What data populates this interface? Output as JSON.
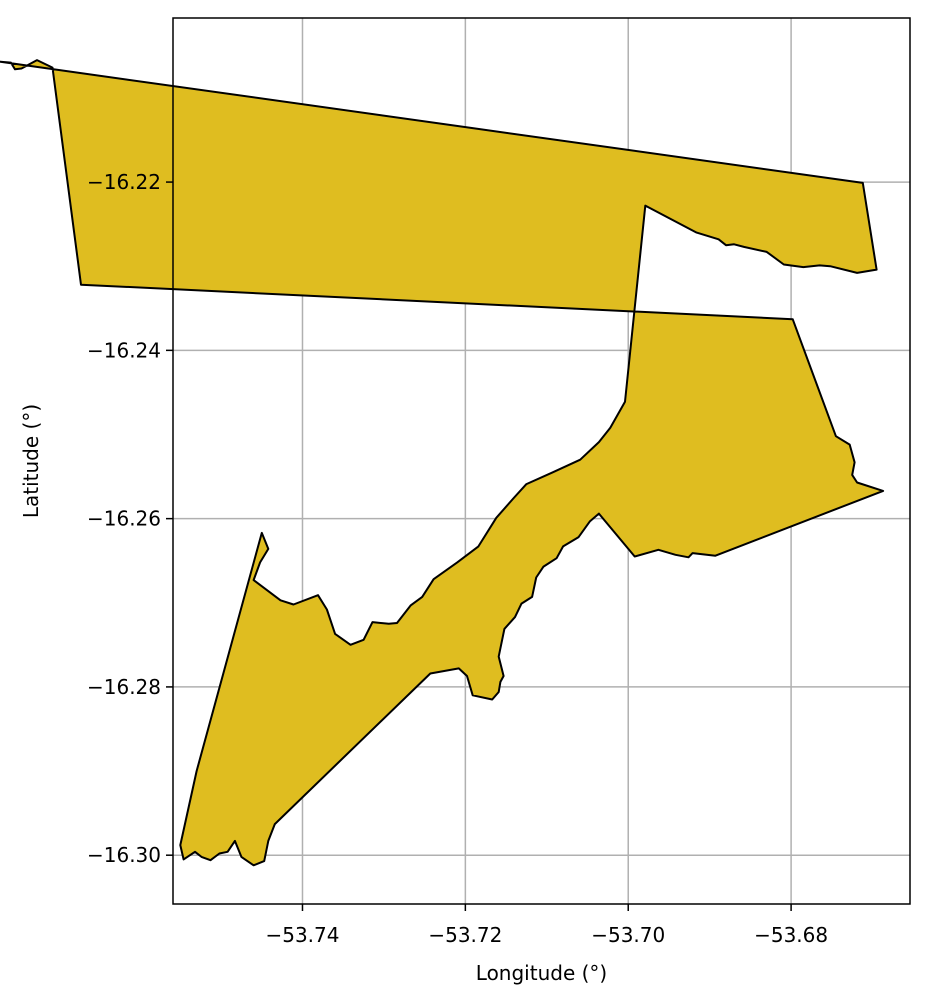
{
  "chart_data": {
    "type": "map",
    "xlabel": "Longitude (°)",
    "ylabel": "Latitude (°)",
    "xlim": [
      -53.7559,
      -53.6654
    ],
    "ylim": [
      -16.3058,
      -16.2005
    ],
    "x_ticks": [
      -53.74,
      -53.72,
      -53.7,
      -53.68
    ],
    "x_tick_labels": [
      "−53.74",
      "−53.72",
      "−53.70",
      "−53.68"
    ],
    "y_ticks": [
      -16.22,
      -16.24,
      -16.26,
      -16.28,
      -16.3
    ],
    "y_tick_labels": [
      "−16.22",
      "−16.24",
      "−16.26",
      "−16.28",
      "−16.30"
    ],
    "grid": true,
    "fill_color": "#dfbd20",
    "edge_color": "#000000",
    "polygon": [
      [
        -53.7771,
        -16.2057
      ],
      [
        -53.7758,
        -16.2058
      ],
      [
        -53.7753,
        -16.2066
      ],
      [
        -53.7745,
        -16.2065
      ],
      [
        -53.7726,
        -16.2055
      ],
      [
        -53.7711,
        -16.2062
      ],
      [
        -53.7707,
        -16.2064
      ],
      [
        -53.7672,
        -16.2322
      ],
      [
        -53.6798,
        -16.2363
      ],
      [
        -53.6745,
        -16.2502
      ],
      [
        -53.6728,
        -16.2512
      ],
      [
        -53.6722,
        -16.2533
      ],
      [
        -53.6725,
        -16.2548
      ],
      [
        -53.6719,
        -16.2557
      ],
      [
        -53.6687,
        -16.2567
      ],
      [
        -53.6893,
        -16.2644
      ],
      [
        -53.6921,
        -16.2641
      ],
      [
        -53.6926,
        -16.2646
      ],
      [
        -53.6942,
        -16.2643
      ],
      [
        -53.6963,
        -16.2637
      ],
      [
        -53.6992,
        -16.2645
      ],
      [
        -53.7036,
        -16.2594
      ],
      [
        -53.7047,
        -16.2603
      ],
      [
        -53.7061,
        -16.2622
      ],
      [
        -53.708,
        -16.2633
      ],
      [
        -53.7088,
        -16.2647
      ],
      [
        -53.7104,
        -16.2657
      ],
      [
        -53.7113,
        -16.267
      ],
      [
        -53.7118,
        -16.2693
      ],
      [
        -53.7131,
        -16.2701
      ],
      [
        -53.7139,
        -16.2717
      ],
      [
        -53.7152,
        -16.2731
      ],
      [
        -53.7159,
        -16.2764
      ],
      [
        -53.7153,
        -16.2787
      ],
      [
        -53.7157,
        -16.2794
      ],
      [
        -53.7159,
        -16.2806
      ],
      [
        -53.7167,
        -16.2815
      ],
      [
        -53.7191,
        -16.281
      ],
      [
        -53.7198,
        -16.2787
      ],
      [
        -53.7208,
        -16.2778
      ],
      [
        -53.7243,
        -16.2784
      ],
      [
        -53.7434,
        -16.2963
      ],
      [
        -53.7442,
        -16.2983
      ],
      [
        -53.7447,
        -16.3007
      ],
      [
        -53.746,
        -16.3012
      ],
      [
        -53.7475,
        -16.3002
      ],
      [
        -53.7483,
        -16.2983
      ],
      [
        -53.7492,
        -16.2996
      ],
      [
        -53.7502,
        -16.2998
      ],
      [
        -53.7513,
        -16.3006
      ],
      [
        -53.7524,
        -16.3002
      ],
      [
        -53.7532,
        -16.2996
      ],
      [
        -53.7546,
        -16.3005
      ],
      [
        -53.755,
        -16.2988
      ],
      [
        -53.753,
        -16.29
      ],
      [
        -53.745,
        -16.2617
      ],
      [
        -53.7442,
        -16.2636
      ],
      [
        -53.7452,
        -16.2652
      ],
      [
        -53.746,
        -16.2673
      ],
      [
        -53.7427,
        -16.2697
      ],
      [
        -53.7411,
        -16.2702
      ],
      [
        -53.7381,
        -16.2691
      ],
      [
        -53.737,
        -16.2708
      ],
      [
        -53.736,
        -16.2737
      ],
      [
        -53.7341,
        -16.275
      ],
      [
        -53.7325,
        -16.2744
      ],
      [
        -53.7314,
        -16.2723
      ],
      [
        -53.7294,
        -16.2725
      ],
      [
        -53.7284,
        -16.2724
      ],
      [
        -53.7267,
        -16.2703
      ],
      [
        -53.7253,
        -16.2693
      ],
      [
        -53.7239,
        -16.2672
      ],
      [
        -53.721,
        -16.2652
      ],
      [
        -53.7184,
        -16.2633
      ],
      [
        -53.7162,
        -16.2599
      ],
      [
        -53.7141,
        -16.2576
      ],
      [
        -53.7125,
        -16.2559
      ],
      [
        -53.7093,
        -16.2545
      ],
      [
        -53.7059,
        -16.253
      ],
      [
        -53.7036,
        -16.2509
      ],
      [
        -53.7022,
        -16.2492
      ],
      [
        -53.7004,
        -16.2461
      ],
      [
        -53.6979,
        -16.2228
      ],
      [
        -53.6916,
        -16.226
      ],
      [
        -53.6889,
        -16.2268
      ],
      [
        -53.688,
        -16.2275
      ],
      [
        -53.687,
        -16.2274
      ],
      [
        -53.6858,
        -16.2277
      ],
      [
        -53.683,
        -16.2283
      ],
      [
        -53.6809,
        -16.2298
      ],
      [
        -53.6785,
        -16.2301
      ],
      [
        -53.6765,
        -16.2299
      ],
      [
        -53.6752,
        -16.23
      ],
      [
        -53.6719,
        -16.2308
      ],
      [
        -53.6695,
        -16.2304
      ],
      [
        -53.6712,
        -16.2201
      ]
    ]
  }
}
